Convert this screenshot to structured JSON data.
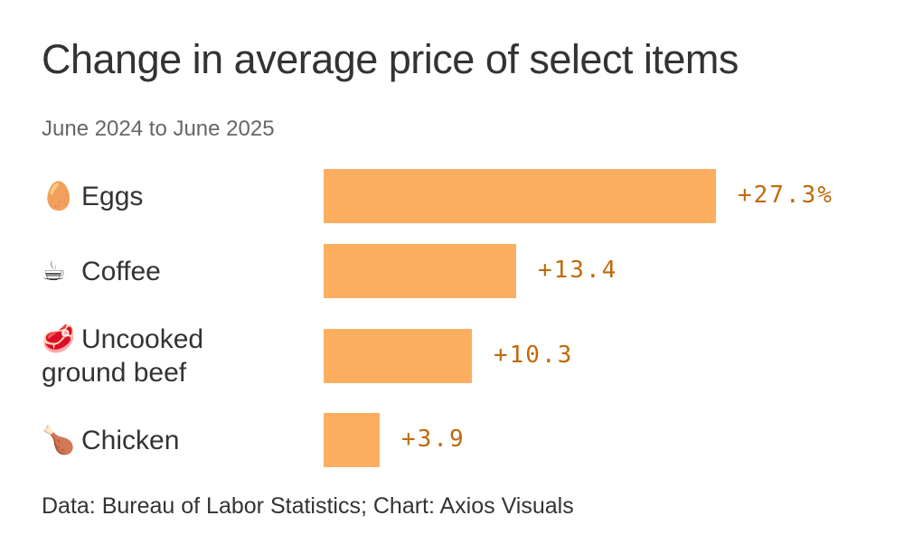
{
  "chart_data": {
    "type": "bar",
    "orientation": "horizontal",
    "title": "Change in average price of select items",
    "subtitle": "June 2024 to June 2025",
    "categories": [
      "Eggs",
      "Coffee",
      "Uncooked ground beef",
      "Chicken"
    ],
    "category_icons": [
      "egg-icon",
      "coffee-icon",
      "steak-icon",
      "poultry-leg-icon"
    ],
    "category_emoji": [
      "🥚",
      "☕",
      "🥩",
      "🍗"
    ],
    "values": [
      27.3,
      13.4,
      10.3,
      3.9
    ],
    "value_labels": [
      "+27.3%",
      "+13.4",
      "+10.3",
      "+3.9"
    ],
    "unit": "%",
    "xlim": [
      0,
      27.3
    ],
    "grid": false,
    "bar_color": "#fbae60",
    "label_color": "#c06a0a",
    "footer": "Data: Bureau of Labor Statistics; Chart: Axios Visuals"
  }
}
